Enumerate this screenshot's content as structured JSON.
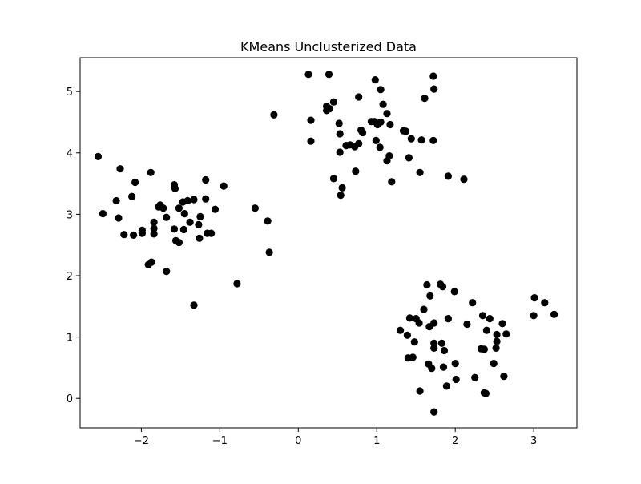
{
  "chart_data": {
    "type": "scatter",
    "title": "KMeans Unclusterized Data",
    "xlabel": "",
    "ylabel": "",
    "xlim": [
      -2.78,
      3.55
    ],
    "ylim": [
      -0.48,
      5.55
    ],
    "xticks": [
      -2,
      -1,
      0,
      1,
      2,
      3
    ],
    "xtick_labels": [
      "−2",
      "−1",
      "0",
      "1",
      "2",
      "3"
    ],
    "yticks": [
      0,
      1,
      2,
      3,
      4,
      5
    ],
    "ytick_labels": [
      "0",
      "1",
      "2",
      "3",
      "4",
      "5"
    ],
    "grid": false,
    "legend": "none",
    "marker_color": "#000000",
    "series": [
      {
        "points": [
          [
            -2.55,
            3.94
          ],
          [
            -2.49,
            3.01
          ],
          [
            -2.27,
            3.74
          ],
          [
            -2.32,
            3.22
          ],
          [
            -2.29,
            2.94
          ],
          [
            -2.22,
            2.67
          ],
          [
            -2.12,
            3.29
          ],
          [
            -2.08,
            3.52
          ],
          [
            -2.1,
            2.66
          ],
          [
            -1.99,
            2.74
          ],
          [
            -1.99,
            2.69
          ],
          [
            -1.88,
            3.68
          ],
          [
            -1.84,
            2.87
          ],
          [
            -1.84,
            2.77
          ],
          [
            -1.84,
            2.68
          ],
          [
            -1.78,
            3.12
          ],
          [
            -1.76,
            3.15
          ],
          [
            -1.72,
            3.1
          ],
          [
            -1.68,
            2.95
          ],
          [
            -1.58,
            3.48
          ],
          [
            -1.57,
            3.42
          ],
          [
            -1.58,
            2.76
          ],
          [
            -1.56,
            2.57
          ],
          [
            -1.52,
            2.54
          ],
          [
            -1.52,
            3.1
          ],
          [
            -1.47,
            3.2
          ],
          [
            -1.45,
            3.01
          ],
          [
            -1.46,
            2.75
          ],
          [
            -1.41,
            3.22
          ],
          [
            -1.38,
            2.87
          ],
          [
            -1.33,
            3.24
          ],
          [
            -1.27,
            2.83
          ],
          [
            -1.25,
            2.96
          ],
          [
            -1.26,
            2.61
          ],
          [
            -1.18,
            3.56
          ],
          [
            -1.18,
            3.25
          ],
          [
            -1.16,
            2.69
          ],
          [
            -1.11,
            2.69
          ],
          [
            -1.06,
            3.08
          ],
          [
            -0.95,
            3.46
          ],
          [
            -1.91,
            2.18
          ],
          [
            -1.87,
            2.22
          ],
          [
            -1.68,
            2.07
          ],
          [
            -1.33,
            1.52
          ],
          [
            -0.78,
            1.87
          ],
          [
            -0.55,
            3.1
          ],
          [
            -0.39,
            2.89
          ],
          [
            -0.37,
            2.38
          ],
          [
            -0.31,
            4.62
          ],
          [
            0.13,
            5.28
          ],
          [
            0.39,
            5.28
          ],
          [
            0.98,
            5.19
          ],
          [
            1.72,
            5.25
          ],
          [
            1.73,
            5.04
          ],
          [
            1.05,
            5.03
          ],
          [
            0.77,
            4.91
          ],
          [
            1.61,
            4.89
          ],
          [
            1.08,
            4.79
          ],
          [
            0.45,
            4.83
          ],
          [
            0.36,
            4.76
          ],
          [
            0.4,
            4.72
          ],
          [
            0.36,
            4.69
          ],
          [
            1.13,
            4.64
          ],
          [
            0.16,
            4.53
          ],
          [
            0.52,
            4.48
          ],
          [
            0.93,
            4.51
          ],
          [
            0.97,
            4.51
          ],
          [
            1.01,
            4.46
          ],
          [
            1.05,
            4.5
          ],
          [
            1.17,
            4.46
          ],
          [
            0.53,
            4.31
          ],
          [
            0.8,
            4.37
          ],
          [
            0.82,
            4.33
          ],
          [
            1.34,
            4.36
          ],
          [
            1.37,
            4.35
          ],
          [
            0.99,
            4.2
          ],
          [
            1.44,
            4.23
          ],
          [
            1.57,
            4.21
          ],
          [
            1.72,
            4.2
          ],
          [
            0.16,
            4.19
          ],
          [
            0.61,
            4.12
          ],
          [
            0.66,
            4.13
          ],
          [
            0.72,
            4.1
          ],
          [
            0.77,
            4.15
          ],
          [
            1.04,
            4.09
          ],
          [
            0.53,
            4.01
          ],
          [
            1.16,
            3.95
          ],
          [
            1.13,
            3.87
          ],
          [
            1.41,
            3.92
          ],
          [
            0.73,
            3.7
          ],
          [
            1.55,
            3.68
          ],
          [
            1.91,
            3.62
          ],
          [
            2.11,
            3.57
          ],
          [
            0.45,
            3.58
          ],
          [
            1.19,
            3.53
          ],
          [
            0.56,
            3.43
          ],
          [
            0.54,
            3.31
          ],
          [
            1.64,
            1.85
          ],
          [
            1.81,
            1.86
          ],
          [
            1.84,
            1.82
          ],
          [
            1.99,
            1.74
          ],
          [
            1.68,
            1.67
          ],
          [
            2.22,
            1.56
          ],
          [
            1.6,
            1.45
          ],
          [
            1.42,
            1.31
          ],
          [
            1.5,
            1.3
          ],
          [
            1.54,
            1.23
          ],
          [
            1.73,
            1.23
          ],
          [
            1.91,
            1.3
          ],
          [
            2.15,
            1.21
          ],
          [
            1.3,
            1.11
          ],
          [
            1.67,
            1.17
          ],
          [
            1.39,
            1.03
          ],
          [
            1.48,
            0.92
          ],
          [
            1.73,
            0.9
          ],
          [
            1.83,
            0.9
          ],
          [
            1.73,
            0.82
          ],
          [
            1.86,
            0.78
          ],
          [
            1.4,
            0.66
          ],
          [
            1.46,
            0.67
          ],
          [
            1.66,
            0.56
          ],
          [
            1.7,
            0.49
          ],
          [
            1.85,
            0.51
          ],
          [
            2.0,
            0.57
          ],
          [
            2.01,
            0.31
          ],
          [
            1.89,
            0.2
          ],
          [
            1.55,
            0.12
          ],
          [
            2.25,
            0.34
          ],
          [
            2.37,
            0.09
          ],
          [
            2.39,
            0.08
          ],
          [
            1.73,
            -0.22
          ],
          [
            2.35,
            1.35
          ],
          [
            2.44,
            1.3
          ],
          [
            2.4,
            1.11
          ],
          [
            2.6,
            1.22
          ],
          [
            2.53,
            1.04
          ],
          [
            2.65,
            1.05
          ],
          [
            2.53,
            0.93
          ],
          [
            2.52,
            0.82
          ],
          [
            2.33,
            0.81
          ],
          [
            2.37,
            0.8
          ],
          [
            2.49,
            0.57
          ],
          [
            2.62,
            0.36
          ],
          [
            3.01,
            1.64
          ],
          [
            3.0,
            1.35
          ],
          [
            3.14,
            1.56
          ],
          [
            3.26,
            1.37
          ]
        ]
      }
    ]
  }
}
